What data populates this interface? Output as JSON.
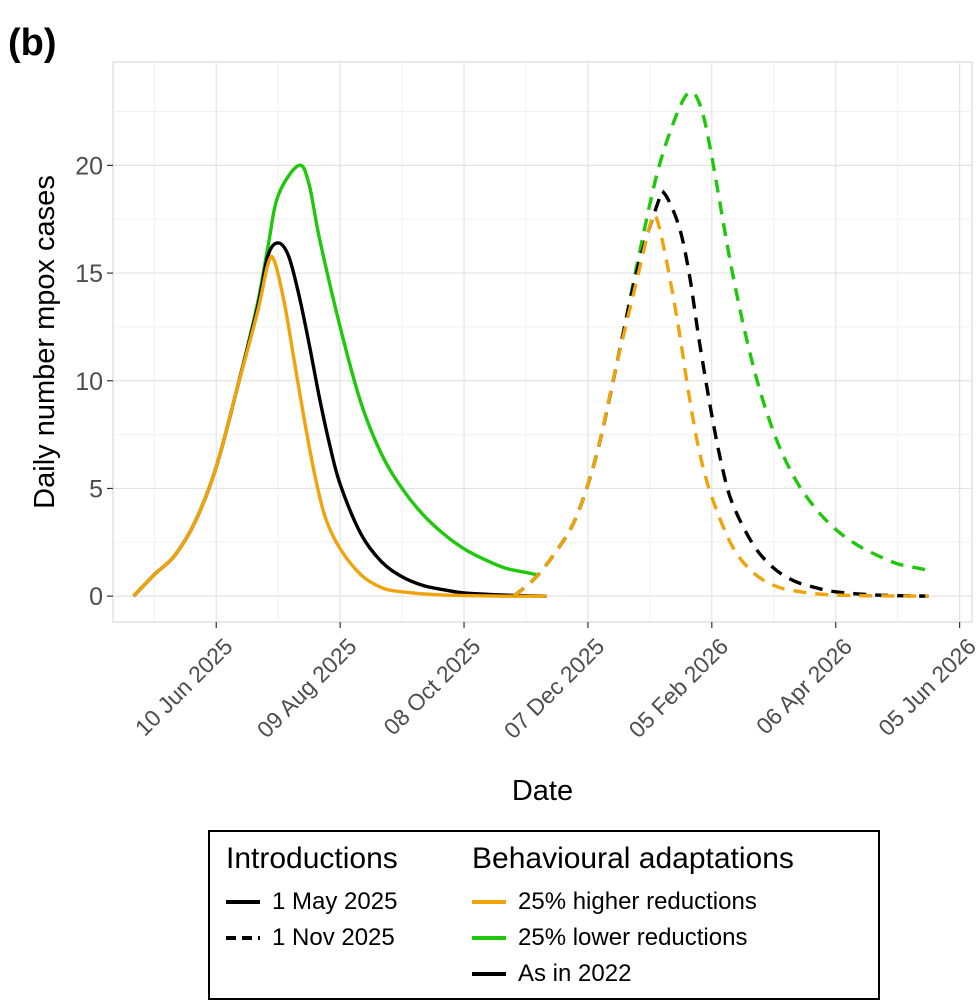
{
  "panel_label": "(b)",
  "chart_data": {
    "type": "line",
    "title": "",
    "xlabel": "Date",
    "ylabel": "Daily number mpox cases",
    "x_type": "date",
    "xlim": [
      "2025-04-21",
      "2026-06-11"
    ],
    "ylim": [
      -1.2,
      24.8
    ],
    "grid": true,
    "x_ticks": [
      "2025-06-10",
      "2025-08-09",
      "2025-10-08",
      "2025-12-07",
      "2026-02-05",
      "2026-04-06",
      "2026-06-05"
    ],
    "x_tick_labels": [
      "10 Jun 2025",
      "09 Aug 2025",
      "08 Oct 2025",
      "07 Dec 2025",
      "05 Feb 2026",
      "06 Apr 2026",
      "05 Jun 2026"
    ],
    "y_ticks": [
      0,
      5,
      10,
      15,
      20
    ],
    "y_tick_labels": [
      "0",
      "5",
      "10",
      "15",
      "20"
    ],
    "legend": {
      "position": "bottom",
      "introductions_title": "Introductions",
      "introductions": [
        {
          "label": "1 May 2025",
          "linetype": "solid"
        },
        {
          "label": "1 Nov 2025",
          "linetype": "dashed"
        }
      ],
      "adaptations_title": "Behavioural adaptations",
      "adaptations": [
        {
          "label": "25% higher reductions",
          "color": "#f0a30a"
        },
        {
          "label": "25% lower reductions",
          "color": "#1ec80a"
        },
        {
          "label": "As in 2022",
          "color": "#000000"
        }
      ]
    },
    "series": [
      {
        "introduction": "1 May 2025",
        "adaptation": "25% lower reductions",
        "color": "#1ec80a",
        "linetype": "solid",
        "points": [
          [
            "2025-05-01",
            0
          ],
          [
            "2025-05-11",
            1.0
          ],
          [
            "2025-05-21",
            1.9
          ],
          [
            "2025-05-31",
            3.5
          ],
          [
            "2025-06-10",
            6.0
          ],
          [
            "2025-06-20",
            9.6
          ],
          [
            "2025-06-30",
            13.6
          ],
          [
            "2025-07-05",
            16.2
          ],
          [
            "2025-07-10",
            18.6
          ],
          [
            "2025-07-20",
            20.0
          ],
          [
            "2025-07-25",
            19.1
          ],
          [
            "2025-07-30",
            16.6
          ],
          [
            "2025-08-09",
            12.5
          ],
          [
            "2025-08-19",
            9.0
          ],
          [
            "2025-08-29",
            6.6
          ],
          [
            "2025-09-08",
            5.0
          ],
          [
            "2025-09-18",
            3.8
          ],
          [
            "2025-09-28",
            2.9
          ],
          [
            "2025-10-08",
            2.2
          ],
          [
            "2025-10-18",
            1.7
          ],
          [
            "2025-10-28",
            1.3
          ],
          [
            "2025-11-07",
            1.1
          ],
          [
            "2025-11-12",
            1.0
          ]
        ]
      },
      {
        "introduction": "1 May 2025",
        "adaptation": "As in 2022",
        "color": "#000000",
        "linetype": "solid",
        "points": [
          [
            "2025-05-01",
            0
          ],
          [
            "2025-05-11",
            1.0
          ],
          [
            "2025-05-21",
            1.9
          ],
          [
            "2025-05-31",
            3.5
          ],
          [
            "2025-06-10",
            6.0
          ],
          [
            "2025-06-20",
            9.6
          ],
          [
            "2025-06-30",
            13.4
          ],
          [
            "2025-07-05",
            15.8
          ],
          [
            "2025-07-10",
            16.4
          ],
          [
            "2025-07-15",
            15.8
          ],
          [
            "2025-07-20",
            14.0
          ],
          [
            "2025-07-25",
            11.7
          ],
          [
            "2025-07-30",
            9.2
          ],
          [
            "2025-08-04",
            7.0
          ],
          [
            "2025-08-09",
            5.2
          ],
          [
            "2025-08-19",
            2.9
          ],
          [
            "2025-08-29",
            1.6
          ],
          [
            "2025-09-08",
            0.9
          ],
          [
            "2025-09-18",
            0.5
          ],
          [
            "2025-09-28",
            0.3
          ],
          [
            "2025-10-08",
            0.15
          ],
          [
            "2025-10-28",
            0.05
          ],
          [
            "2025-11-17",
            0.0
          ]
        ]
      },
      {
        "introduction": "1 May 2025",
        "adaptation": "25% higher reductions",
        "color": "#f0a30a",
        "linetype": "solid",
        "points": [
          [
            "2025-05-01",
            0
          ],
          [
            "2025-05-11",
            1.0
          ],
          [
            "2025-05-21",
            1.9
          ],
          [
            "2025-05-31",
            3.5
          ],
          [
            "2025-06-10",
            6.0
          ],
          [
            "2025-06-20",
            9.6
          ],
          [
            "2025-06-30",
            13.2
          ],
          [
            "2025-07-05",
            15.4
          ],
          [
            "2025-07-08",
            15.6
          ],
          [
            "2025-07-13",
            13.6
          ],
          [
            "2025-07-18",
            10.8
          ],
          [
            "2025-07-23",
            8.0
          ],
          [
            "2025-07-28",
            5.5
          ],
          [
            "2025-08-02",
            3.6
          ],
          [
            "2025-08-09",
            2.2
          ],
          [
            "2025-08-19",
            1.0
          ],
          [
            "2025-08-29",
            0.4
          ],
          [
            "2025-09-08",
            0.2
          ],
          [
            "2025-09-28",
            0.05
          ],
          [
            "2025-10-28",
            0.0
          ],
          [
            "2025-11-17",
            0.0
          ]
        ]
      },
      {
        "introduction": "1 Nov 2025",
        "adaptation": "25% lower reductions",
        "color": "#1ec80a",
        "linetype": "dashed",
        "points": [
          [
            "2025-11-01",
            0
          ],
          [
            "2025-11-11",
            0.8
          ],
          [
            "2025-11-21",
            2.0
          ],
          [
            "2025-12-01",
            3.6
          ],
          [
            "2025-12-11",
            6.5
          ],
          [
            "2025-12-21",
            10.8
          ],
          [
            "2025-12-31",
            15.5
          ],
          [
            "2026-01-10",
            19.8
          ],
          [
            "2026-01-20",
            22.6
          ],
          [
            "2026-01-26",
            23.4
          ],
          [
            "2026-01-31",
            22.6
          ],
          [
            "2026-02-05",
            20.4
          ],
          [
            "2026-02-15",
            15.0
          ],
          [
            "2026-02-25",
            10.7
          ],
          [
            "2026-03-07",
            7.6
          ],
          [
            "2026-03-17",
            5.5
          ],
          [
            "2026-03-27",
            4.1
          ],
          [
            "2026-04-06",
            3.1
          ],
          [
            "2026-04-16",
            2.4
          ],
          [
            "2026-04-26",
            1.9
          ],
          [
            "2026-05-06",
            1.5
          ],
          [
            "2026-05-16",
            1.3
          ],
          [
            "2026-05-21",
            1.2
          ]
        ]
      },
      {
        "introduction": "1 Nov 2025",
        "adaptation": "As in 2022",
        "color": "#000000",
        "linetype": "dashed",
        "points": [
          [
            "2025-11-01",
            0
          ],
          [
            "2025-11-11",
            0.8
          ],
          [
            "2025-11-21",
            2.0
          ],
          [
            "2025-12-01",
            3.6
          ],
          [
            "2025-12-11",
            6.5
          ],
          [
            "2025-12-21",
            10.8
          ],
          [
            "2025-12-31",
            15.2
          ],
          [
            "2026-01-10",
            18.3
          ],
          [
            "2026-01-13",
            18.7
          ],
          [
            "2026-01-20",
            17.2
          ],
          [
            "2026-01-25",
            15.0
          ],
          [
            "2026-01-30",
            11.8
          ],
          [
            "2026-02-05",
            8.4
          ],
          [
            "2026-02-10",
            6.0
          ],
          [
            "2026-02-15",
            4.3
          ],
          [
            "2026-02-25",
            2.4
          ],
          [
            "2026-03-07",
            1.3
          ],
          [
            "2026-03-17",
            0.7
          ],
          [
            "2026-03-27",
            0.4
          ],
          [
            "2026-04-06",
            0.2
          ],
          [
            "2026-04-26",
            0.05
          ],
          [
            "2026-05-21",
            0.0
          ]
        ]
      },
      {
        "introduction": "1 Nov 2025",
        "adaptation": "25% higher reductions",
        "color": "#f0a30a",
        "linetype": "dashed",
        "points": [
          [
            "2025-11-01",
            0
          ],
          [
            "2025-11-11",
            0.8
          ],
          [
            "2025-11-21",
            2.0
          ],
          [
            "2025-12-01",
            3.6
          ],
          [
            "2025-12-11",
            6.5
          ],
          [
            "2025-12-21",
            10.8
          ],
          [
            "2025-12-31",
            14.8
          ],
          [
            "2026-01-06",
            17.2
          ],
          [
            "2026-01-09",
            17.6
          ],
          [
            "2026-01-14",
            15.6
          ],
          [
            "2026-01-20",
            12.4
          ],
          [
            "2026-01-25",
            9.3
          ],
          [
            "2026-01-30",
            6.7
          ],
          [
            "2026-02-05",
            4.6
          ],
          [
            "2026-02-15",
            2.3
          ],
          [
            "2026-02-25",
            1.1
          ],
          [
            "2026-03-07",
            0.5
          ],
          [
            "2026-03-17",
            0.25
          ],
          [
            "2026-04-06",
            0.05
          ],
          [
            "2026-05-21",
            0.0
          ]
        ]
      }
    ]
  }
}
